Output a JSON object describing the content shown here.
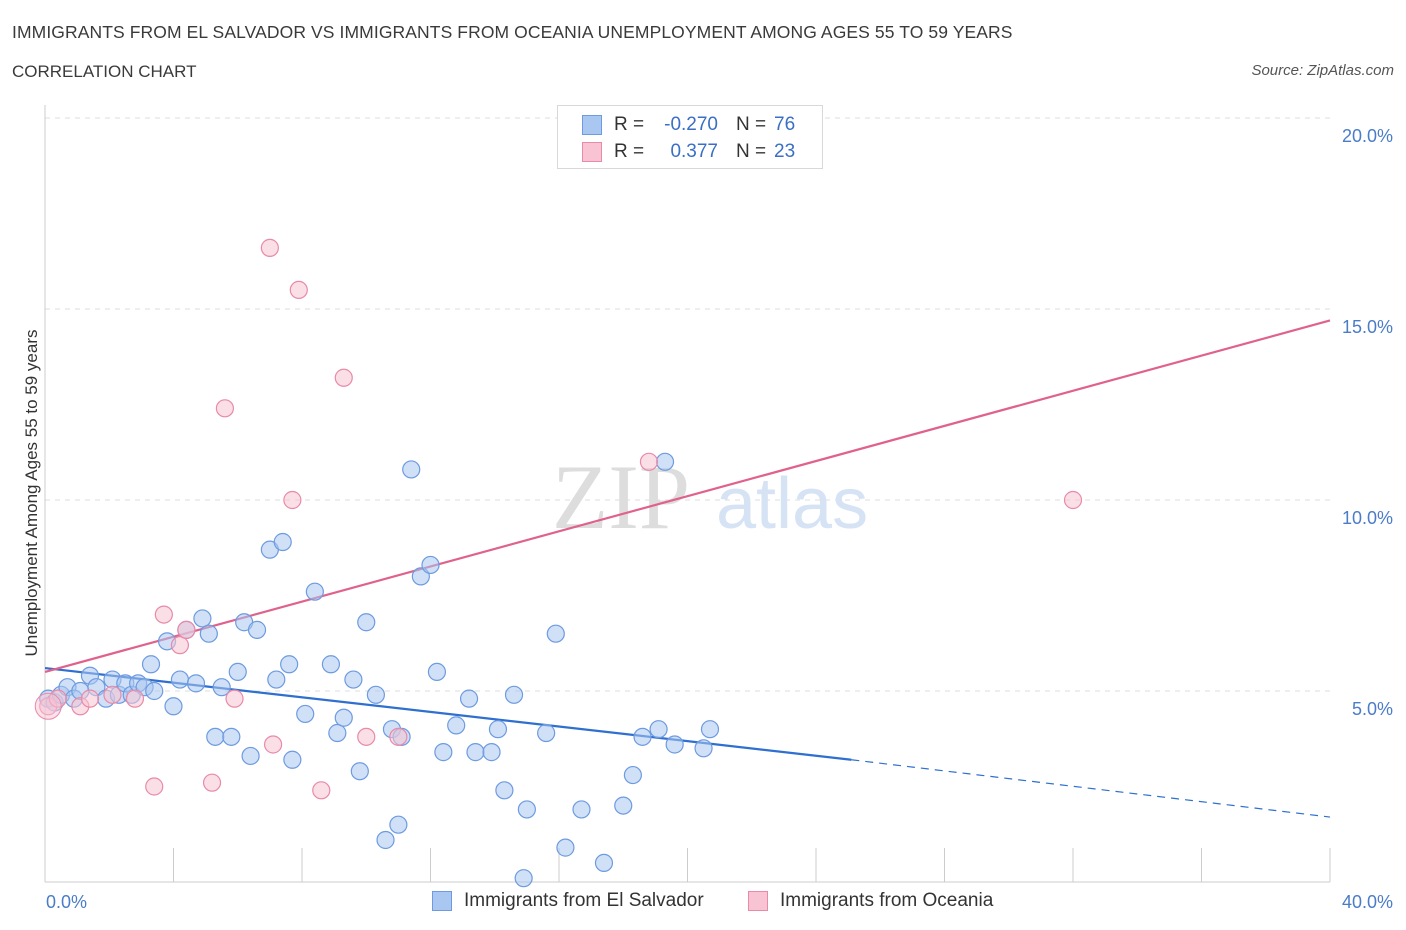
{
  "header": {
    "title": "IMMIGRANTS FROM EL SALVADOR VS IMMIGRANTS FROM OCEANIA UNEMPLOYMENT AMONG AGES 55 TO 59 YEARS",
    "subtitle": "CORRELATION CHART",
    "source": "Source: ZipAtlas.com"
  },
  "watermark": {
    "zip": "ZIP",
    "atlas": "atlas"
  },
  "legend": {
    "rows": [
      {
        "r_label": "R =",
        "r_value": "-0.270",
        "n_label": "N =",
        "n_value": "76",
        "color": "#a9c7f0",
        "border": "#6d9be0"
      },
      {
        "r_label": "R =",
        "r_value": "0.377",
        "n_label": "N =",
        "n_value": "23",
        "color": "#f8c4d4",
        "border": "#e88aa8"
      }
    ]
  },
  "bottom_legend": [
    {
      "label": "Immigrants from El Salvador",
      "color": "#a9c7f0",
      "border": "#6d9be0"
    },
    {
      "label": "Immigrants from Oceania",
      "color": "#f8c4d4",
      "border": "#e88aa8"
    }
  ],
  "chart_data": {
    "type": "scatter",
    "title": "IMMIGRANTS FROM EL SALVADOR VS IMMIGRANTS FROM OCEANIA UNEMPLOYMENT AMONG AGES 55 TO 59 YEARS",
    "subtitle": "CORRELATION CHART",
    "xlabel": "",
    "ylabel": "Unemployment Among Ages 55 to 59 years",
    "xlim": [
      0,
      40
    ],
    "ylim": [
      0,
      20
    ],
    "x_ticks": [
      "0.0%",
      "40.0%"
    ],
    "y_ticks": [
      {
        "value": 5,
        "label": "5.0%"
      },
      {
        "value": 10,
        "label": "10.0%"
      },
      {
        "value": 15,
        "label": "15.0%"
      },
      {
        "value": 20,
        "label": "20.0%"
      }
    ],
    "grid": true,
    "legend_position": "top-center",
    "colors": {
      "blue_point": "#a9c7f0",
      "blue_edge": "#6d9be0",
      "blue_line": "#2e6fd0",
      "pink_point": "#f8c4d4",
      "pink_edge": "#e88aa8",
      "pink_line": "#e0628c"
    },
    "series": [
      {
        "name": "Immigrants from El Salvador",
        "R": -0.27,
        "N": 76,
        "trend": {
          "x0": 0,
          "y0": 5.6,
          "x1": 25.1,
          "y1": 3.2,
          "dash_x1": 40,
          "dash_y1": 1.7
        },
        "points": [
          [
            0.1,
            4.8
          ],
          [
            0.3,
            4.7
          ],
          [
            0.5,
            4.9
          ],
          [
            0.7,
            5.1
          ],
          [
            0.9,
            4.8
          ],
          [
            1.1,
            5.0
          ],
          [
            1.4,
            5.4
          ],
          [
            1.6,
            5.1
          ],
          [
            1.9,
            4.8
          ],
          [
            2.1,
            5.3
          ],
          [
            2.3,
            4.9
          ],
          [
            2.5,
            5.2
          ],
          [
            2.7,
            4.9
          ],
          [
            2.9,
            5.2
          ],
          [
            3.1,
            5.1
          ],
          [
            3.4,
            5.0
          ],
          [
            3.3,
            5.7
          ],
          [
            3.8,
            6.3
          ],
          [
            4.0,
            4.6
          ],
          [
            4.2,
            5.3
          ],
          [
            4.4,
            6.6
          ],
          [
            4.7,
            5.2
          ],
          [
            4.9,
            6.9
          ],
          [
            5.1,
            6.5
          ],
          [
            5.3,
            3.8
          ],
          [
            5.8,
            3.8
          ],
          [
            5.5,
            5.1
          ],
          [
            6.0,
            5.5
          ],
          [
            6.2,
            6.8
          ],
          [
            6.4,
            3.3
          ],
          [
            6.6,
            6.6
          ],
          [
            7.0,
            8.7
          ],
          [
            7.2,
            5.3
          ],
          [
            7.4,
            8.9
          ],
          [
            7.6,
            5.7
          ],
          [
            7.7,
            3.2
          ],
          [
            8.1,
            4.4
          ],
          [
            8.4,
            7.6
          ],
          [
            8.9,
            5.7
          ],
          [
            9.1,
            3.9
          ],
          [
            9.3,
            4.3
          ],
          [
            9.6,
            5.3
          ],
          [
            9.8,
            2.9
          ],
          [
            10.0,
            6.8
          ],
          [
            10.3,
            4.9
          ],
          [
            10.6,
            1.1
          ],
          [
            10.8,
            4.0
          ],
          [
            11.0,
            1.5
          ],
          [
            11.1,
            3.8
          ],
          [
            11.4,
            10.8
          ],
          [
            11.7,
            8.0
          ],
          [
            12.0,
            8.3
          ],
          [
            12.2,
            5.5
          ],
          [
            12.4,
            3.4
          ],
          [
            12.8,
            4.1
          ],
          [
            13.2,
            4.8
          ],
          [
            13.4,
            3.4
          ],
          [
            13.9,
            3.4
          ],
          [
            14.1,
            4.0
          ],
          [
            14.3,
            2.4
          ],
          [
            14.6,
            4.9
          ],
          [
            14.9,
            0.1
          ],
          [
            15.0,
            1.9
          ],
          [
            15.6,
            3.9
          ],
          [
            15.9,
            6.5
          ],
          [
            16.2,
            0.9
          ],
          [
            16.7,
            1.9
          ],
          [
            17.4,
            0.5
          ],
          [
            18.3,
            2.8
          ],
          [
            18.0,
            2.0
          ],
          [
            18.6,
            3.8
          ],
          [
            19.1,
            4.0
          ],
          [
            19.3,
            11.0
          ],
          [
            19.6,
            3.6
          ],
          [
            20.5,
            3.5
          ],
          [
            20.7,
            4.0
          ]
        ]
      },
      {
        "name": "Immigrants from Oceania",
        "R": 0.377,
        "N": 23,
        "trend": {
          "x0": 0,
          "y0": 5.5,
          "x1": 40,
          "y1": 14.7
        },
        "points": [
          [
            0.1,
            4.6
          ],
          [
            0.4,
            4.8
          ],
          [
            1.1,
            4.6
          ],
          [
            1.4,
            4.8
          ],
          [
            2.1,
            4.9
          ],
          [
            2.8,
            4.8
          ],
          [
            3.4,
            2.5
          ],
          [
            3.7,
            7.0
          ],
          [
            4.2,
            6.2
          ],
          [
            4.4,
            6.6
          ],
          [
            5.6,
            12.4
          ],
          [
            5.9,
            4.8
          ],
          [
            5.2,
            2.6
          ],
          [
            7.0,
            16.6
          ],
          [
            7.1,
            3.6
          ],
          [
            7.9,
            15.5
          ],
          [
            7.7,
            10.0
          ],
          [
            8.6,
            2.4
          ],
          [
            9.3,
            13.2
          ],
          [
            10.0,
            3.8
          ],
          [
            11.0,
            3.8
          ],
          [
            18.8,
            11.0
          ],
          [
            32.0,
            10.0
          ]
        ]
      }
    ]
  }
}
